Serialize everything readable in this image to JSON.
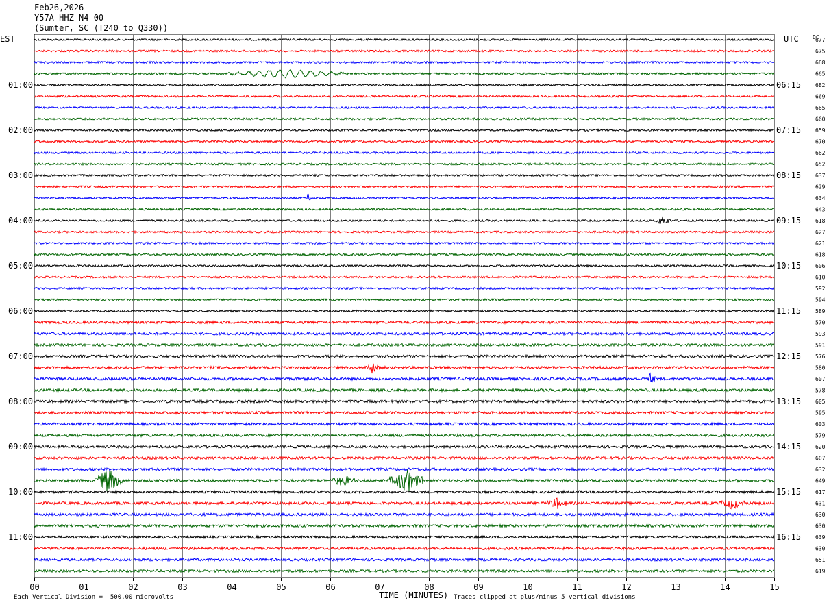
{
  "header": {
    "date": "Feb26,2026",
    "station": "Y57A HHZ N4 00",
    "location": "(Sumter, SC (T240 to Q330))"
  },
  "left_zone": "EST",
  "right_zone": "UTC",
  "dc_label": "DC",
  "footer": {
    "x_axis_label": "TIME (MINUTES)",
    "scale_note": "Each Vertical Division =  500.00 microvolts",
    "clip_note": "Traces clipped at plus/minus 5 vertical divisions"
  },
  "chart_data": {
    "type": "line",
    "subtype": "helicorder",
    "x_ticks": [
      "00",
      "01",
      "02",
      "03",
      "04",
      "05",
      "06",
      "07",
      "08",
      "09",
      "10",
      "11",
      "12",
      "13",
      "14",
      "15"
    ],
    "xlim": [
      0,
      15
    ],
    "trace_colors": [
      "#000000",
      "#ff0000",
      "#0000ff",
      "#006400"
    ],
    "left_hour_labels": [
      "01:00",
      "02:00",
      "03:00",
      "04:00",
      "05:00",
      "06:00",
      "07:00",
      "08:00",
      "09:00",
      "10:00",
      "11:00"
    ],
    "right_hour_labels": [
      "06:15",
      "07:15",
      "08:15",
      "09:15",
      "10:15",
      "11:15",
      "12:15",
      "13:15",
      "14:15",
      "15:15",
      "16:15"
    ],
    "dc_values": [
      "677",
      "675",
      "668",
      "665",
      "682",
      "669",
      "665",
      "660",
      "659",
      "670",
      "662",
      "652",
      "637",
      "629",
      "634",
      "643",
      "618",
      "627",
      "621",
      "618",
      "606",
      "610",
      "592",
      "594",
      "589",
      "570",
      "593",
      "591",
      "576",
      "580",
      "607",
      "578",
      "605",
      "595",
      "603",
      "579",
      "620",
      "607",
      "632",
      "649",
      "617",
      "631",
      "630",
      "630",
      "639",
      "630",
      "651",
      "619"
    ],
    "events": [
      {
        "trace": 3,
        "start_min": 3.7,
        "end_min": 6.5,
        "amplitude": "moderate"
      },
      {
        "trace": 14,
        "start_min": 5.5,
        "end_min": 5.6,
        "amplitude": "small"
      },
      {
        "trace": 16,
        "start_min": 12.6,
        "end_min": 12.9,
        "amplitude": "moderate"
      },
      {
        "trace": 29,
        "start_min": 6.7,
        "end_min": 7.0,
        "amplitude": "moderate"
      },
      {
        "trace": 30,
        "start_min": 12.4,
        "end_min": 12.6,
        "amplitude": "moderate"
      },
      {
        "trace": 39,
        "start_min": 1.2,
        "end_min": 1.8,
        "amplitude": "large"
      },
      {
        "trace": 39,
        "start_min": 6.0,
        "end_min": 6.5,
        "amplitude": "moderate"
      },
      {
        "trace": 39,
        "start_min": 7.2,
        "end_min": 7.9,
        "amplitude": "large"
      },
      {
        "trace": 41,
        "start_min": 10.4,
        "end_min": 10.8,
        "amplitude": "moderate"
      },
      {
        "trace": 41,
        "start_min": 13.9,
        "end_min": 14.4,
        "amplitude": "moderate"
      }
    ]
  }
}
